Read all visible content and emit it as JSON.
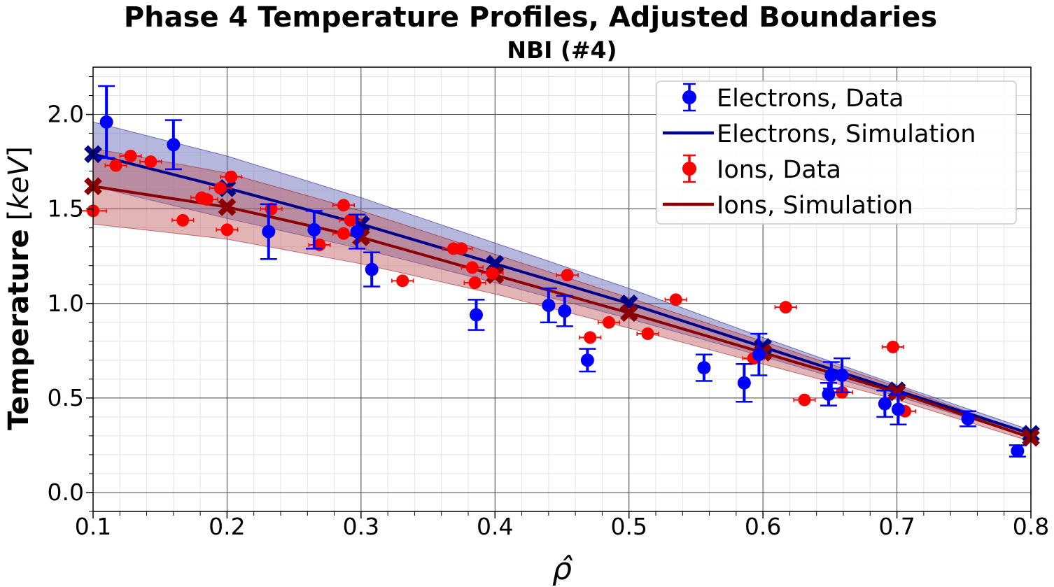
{
  "chart_data": {
    "type": "scatter",
    "title": "Phase 4 Temperature Profiles, Adjusted Boundaries",
    "subtitle": "NBI (#4)",
    "xlabel": "ρ̂",
    "ylabel_main": "Temperature",
    "ylabel_unit": "keV",
    "xlim": [
      0.1,
      0.8
    ],
    "ylim": [
      -0.1,
      2.25
    ],
    "xticks": [
      "0.1",
      "0.2",
      "0.3",
      "0.4",
      "0.5",
      "0.6",
      "0.7",
      "0.8"
    ],
    "yticks": [
      "0.0",
      "0.5",
      "1.0",
      "1.5",
      "2.0"
    ],
    "grid": true,
    "legend_position": "top-right",
    "legend": [
      "Electrons, Data",
      "Electrons, Simulation",
      "Ions, Data",
      "Ions, Simulation"
    ],
    "colors": {
      "electron_data": "#0000ff",
      "electron_sim": "#00008b",
      "electron_band": "#5a5fb4",
      "ion_data": "#ff0000",
      "ion_sim": "#8b0000",
      "ion_band": "#c0585a"
    },
    "electron_sim": {
      "x": [
        0.1,
        0.2,
        0.3,
        0.4,
        0.5,
        0.6,
        0.7,
        0.8
      ],
      "y": [
        1.79,
        1.61,
        1.42,
        1.21,
        1.0,
        0.77,
        0.54,
        0.31
      ],
      "band_upper": [
        1.96,
        1.78,
        1.56,
        1.32,
        1.08,
        0.82,
        0.57,
        0.33
      ],
      "band_lower": [
        1.62,
        1.45,
        1.29,
        1.11,
        0.92,
        0.72,
        0.51,
        0.29
      ]
    },
    "ion_sim": {
      "x": [
        0.1,
        0.2,
        0.3,
        0.4,
        0.5,
        0.6,
        0.7,
        0.8
      ],
      "y": [
        1.62,
        1.51,
        1.35,
        1.15,
        0.95,
        0.74,
        0.53,
        0.29
      ],
      "band_upper": [
        1.82,
        1.69,
        1.49,
        1.26,
        1.03,
        0.8,
        0.56,
        0.31
      ],
      "band_lower": [
        1.42,
        1.34,
        1.21,
        1.05,
        0.87,
        0.68,
        0.49,
        0.27
      ]
    },
    "electron_data": [
      {
        "x": 0.11,
        "y": 1.96,
        "err": 0.19
      },
      {
        "x": 0.16,
        "y": 1.84,
        "err": 0.13
      },
      {
        "x": 0.231,
        "y": 1.38,
        "err": 0.145
      },
      {
        "x": 0.265,
        "y": 1.39,
        "err": 0.1
      },
      {
        "x": 0.297,
        "y": 1.38,
        "err": 0.09
      },
      {
        "x": 0.308,
        "y": 1.18,
        "err": 0.09
      },
      {
        "x": 0.386,
        "y": 0.94,
        "err": 0.08
      },
      {
        "x": 0.44,
        "y": 0.99,
        "err": 0.09
      },
      {
        "x": 0.452,
        "y": 0.96,
        "err": 0.08
      },
      {
        "x": 0.469,
        "y": 0.7,
        "err": 0.06
      },
      {
        "x": 0.556,
        "y": 0.66,
        "err": 0.07
      },
      {
        "x": 0.586,
        "y": 0.58,
        "err": 0.1
      },
      {
        "x": 0.597,
        "y": 0.73,
        "err": 0.11
      },
      {
        "x": 0.649,
        "y": 0.52,
        "err": 0.06
      },
      {
        "x": 0.651,
        "y": 0.62,
        "err": 0.07
      },
      {
        "x": 0.659,
        "y": 0.62,
        "err": 0.09
      },
      {
        "x": 0.691,
        "y": 0.47,
        "err": 0.07
      },
      {
        "x": 0.701,
        "y": 0.44,
        "err": 0.08
      },
      {
        "x": 0.753,
        "y": 0.39,
        "err": 0.04
      },
      {
        "x": 0.79,
        "y": 0.22,
        "err": 0.03
      }
    ],
    "ion_data": [
      {
        "x": 0.1,
        "y": 1.49,
        "xerr": 0.01
      },
      {
        "x": 0.117,
        "y": 1.73,
        "xerr": 0.008
      },
      {
        "x": 0.128,
        "y": 1.78,
        "xerr": 0.008
      },
      {
        "x": 0.143,
        "y": 1.75,
        "xerr": 0.008
      },
      {
        "x": 0.167,
        "y": 1.44,
        "xerr": 0.008
      },
      {
        "x": 0.181,
        "y": 1.56,
        "xerr": 0.008
      },
      {
        "x": 0.185,
        "y": 1.55,
        "xerr": 0.008
      },
      {
        "x": 0.195,
        "y": 1.61,
        "xerr": 0.008
      },
      {
        "x": 0.2,
        "y": 1.39,
        "xerr": 0.008
      },
      {
        "x": 0.203,
        "y": 1.67,
        "xerr": 0.008
      },
      {
        "x": 0.233,
        "y": 1.5,
        "xerr": 0.008
      },
      {
        "x": 0.269,
        "y": 1.31,
        "xerr": 0.008
      },
      {
        "x": 0.287,
        "y": 1.37,
        "xerr": 0.008
      },
      {
        "x": 0.287,
        "y": 1.52,
        "xerr": 0.008
      },
      {
        "x": 0.292,
        "y": 1.44,
        "xerr": 0.008
      },
      {
        "x": 0.331,
        "y": 1.12,
        "xerr": 0.008
      },
      {
        "x": 0.369,
        "y": 1.29,
        "xerr": 0.008
      },
      {
        "x": 0.375,
        "y": 1.29,
        "xerr": 0.008
      },
      {
        "x": 0.383,
        "y": 1.19,
        "xerr": 0.008
      },
      {
        "x": 0.385,
        "y": 1.11,
        "xerr": 0.008
      },
      {
        "x": 0.398,
        "y": 1.16,
        "xerr": 0.008
      },
      {
        "x": 0.454,
        "y": 1.15,
        "xerr": 0.008
      },
      {
        "x": 0.471,
        "y": 0.82,
        "xerr": 0.008
      },
      {
        "x": 0.485,
        "y": 0.9,
        "xerr": 0.008
      },
      {
        "x": 0.514,
        "y": 0.84,
        "xerr": 0.008
      },
      {
        "x": 0.535,
        "y": 1.02,
        "xerr": 0.008
      },
      {
        "x": 0.593,
        "y": 0.71,
        "xerr": 0.008
      },
      {
        "x": 0.617,
        "y": 0.98,
        "xerr": 0.008
      },
      {
        "x": 0.631,
        "y": 0.49,
        "xerr": 0.008
      },
      {
        "x": 0.659,
        "y": 0.53,
        "xerr": 0.008
      },
      {
        "x": 0.697,
        "y": 0.77,
        "xerr": 0.008
      },
      {
        "x": 0.706,
        "y": 0.43,
        "xerr": 0.008
      }
    ]
  }
}
